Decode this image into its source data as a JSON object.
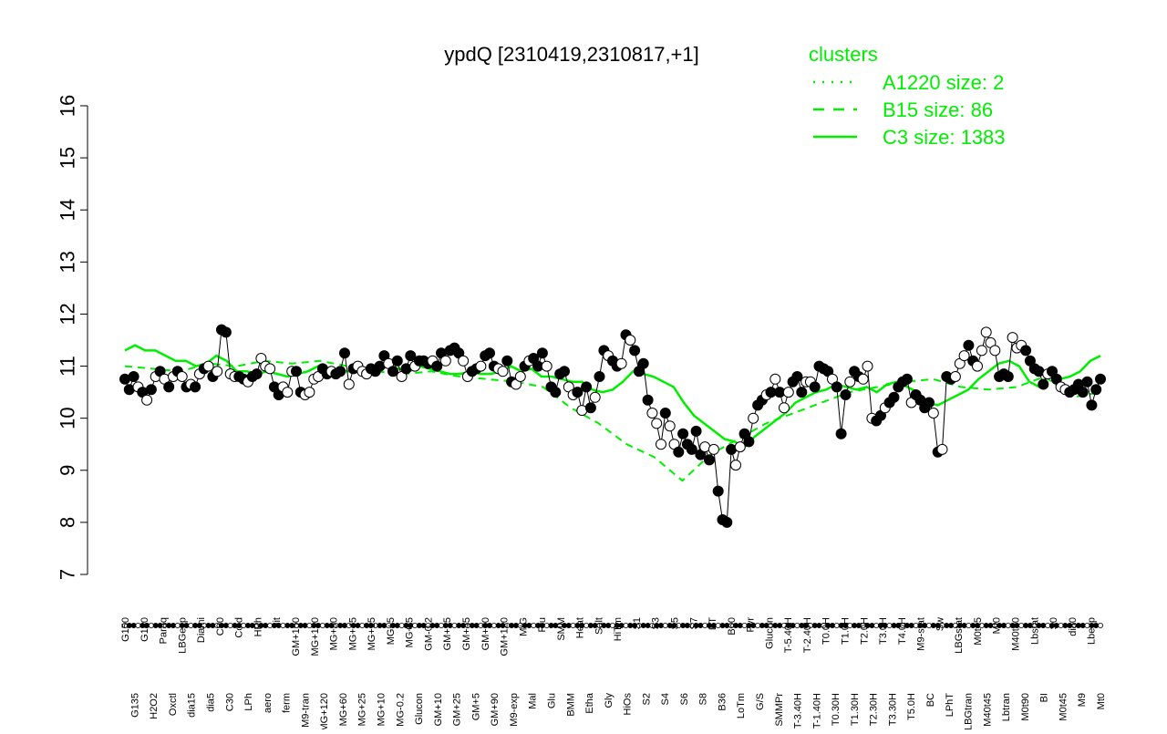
{
  "chart_data": {
    "type": "line",
    "title": "ypdQ [2310419,2310817,+1]",
    "ylim": [
      7,
      16
    ],
    "y_ticks": [
      7,
      8,
      9,
      10,
      11,
      12,
      13,
      14,
      15,
      16
    ],
    "legend": {
      "title": "clusters",
      "placement": "top-right",
      "entries": [
        {
          "label": "A1220 size: 2",
          "style": "dotted"
        },
        {
          "label": "B15 size: 86",
          "style": "dashed"
        },
        {
          "label": "C3 size: 1383",
          "style": "solid"
        }
      ]
    },
    "line_color": "#00ee00",
    "x_tick_labels": [
      "G150",
      "G135",
      "G180",
      "H2O2",
      "Paraq",
      "Oxctl",
      "LBGexp",
      "dia15",
      "Diami",
      "dia5",
      "C90",
      "C30",
      "Cold",
      "LPh",
      "HPh",
      "aero",
      "nit",
      "ferm",
      "GM+150",
      "M9-tran",
      "MG+150",
      "MG+120",
      "MG+90",
      "MG+60",
      "MG+45",
      "MG+25",
      "MG+15",
      "MG+10",
      "MG+5",
      "MG-0.2",
      "MG+t5",
      "Glucon",
      "GM-0.2",
      "GM+10",
      "GM+15",
      "GM+25",
      "GM+45",
      "GM+5",
      "GM+60",
      "GM+90",
      "GM+120",
      "M9-exp",
      "M/G",
      "Mal",
      "Fru",
      "Glu",
      "SMM",
      "BMM",
      "Heat",
      "Etha",
      "Salt",
      "Gly",
      "HiTm",
      "HiOs",
      "S1",
      "S2",
      "S3",
      "S4",
      "S5",
      "S6",
      "S7",
      "S8",
      "BT",
      "B36",
      "B60",
      "LoTm",
      "Pyr",
      "G/S",
      "Glucon",
      "SMMPr",
      "T-5.40H",
      "T-3.40H",
      "T-2.40H",
      "T-1.40H",
      "T0.0H",
      "T0.30H",
      "T1.0H",
      "T1.30H",
      "T2.0H",
      "T2.30H",
      "T3.0H",
      "T3.30H",
      "T4.0H",
      "T5.0H",
      "M9-stat",
      "BC",
      "Sw",
      "LPhT",
      "LBGstat",
      "LBGtran",
      "M0t45",
      "M40t45",
      "Mt0",
      "Lbtran",
      "M40t90",
      "M0t90",
      "Lbstat",
      "BI",
      "S0",
      "M0t45",
      "dia0",
      "M9",
      "Lbexp",
      "Mt0"
    ],
    "series": [
      {
        "values": [
          10.75,
          10.55,
          10.8,
          10.6,
          10.5,
          10.35,
          10.55,
          10.8,
          10.9,
          10.75,
          10.6,
          10.8,
          10.9,
          10.8,
          10.6,
          10.65,
          10.6,
          10.85,
          10.95,
          11.0,
          10.8,
          10.9,
          11.7,
          11.65,
          10.85,
          10.8,
          10.8,
          10.75,
          10.7,
          10.8,
          10.85,
          11.15,
          11.0,
          10.95,
          10.6,
          10.45,
          10.6,
          10.5,
          10.9,
          10.9,
          10.5,
          10.45,
          10.5,
          10.75,
          10.8,
          10.95,
          10.85,
          10.9,
          10.85,
          10.9,
          11.25,
          10.65,
          10.95,
          11.0,
          10.9,
          10.85,
          10.95,
          10.9,
          11.0,
          11.2,
          11.05,
          10.9,
          11.1,
          10.8,
          10.95,
          11.2,
          11.0,
          11.1,
          11.1,
          11.05,
          11.1,
          11.0,
          11.25,
          11.1,
          11.3,
          11.35,
          11.25,
          11.1,
          10.8,
          10.9,
          10.95,
          11.0,
          11.2,
          11.25,
          11.0,
          10.95,
          10.9,
          11.1,
          10.7,
          10.65,
          10.8,
          11.0,
          11.1,
          11.15,
          11.0,
          11.25,
          11.0,
          10.6,
          10.5,
          10.85,
          10.9,
          10.6,
          10.45,
          10.5,
          10.15,
          10.6,
          10.2,
          10.4,
          10.8,
          11.3,
          11.2,
          11.1,
          11.0,
          11.05,
          11.6,
          11.5,
          11.3,
          10.9,
          11.05,
          10.35,
          10.1,
          9.9,
          9.5,
          10.1,
          9.85,
          9.5,
          9.35,
          9.7,
          9.5,
          9.4,
          9.75,
          9.3,
          9.45,
          9.2,
          9.4,
          8.6,
          8.05,
          8.0,
          9.4,
          9.1,
          9.45,
          9.7,
          9.55,
          10.0,
          10.25,
          10.35,
          10.45,
          10.5,
          10.75,
          10.5,
          10.2,
          10.5,
          10.7,
          10.8,
          10.5,
          10.7,
          10.7,
          10.6,
          11.0,
          10.95,
          10.9,
          10.75,
          10.6,
          9.7,
          10.45,
          10.7,
          10.9,
          10.8,
          10.75,
          11.0,
          10.0,
          9.95,
          10.05,
          10.2,
          10.3,
          10.4,
          10.6,
          10.7,
          10.75,
          10.3,
          10.45,
          10.35,
          10.2,
          10.3,
          10.1,
          9.35,
          9.4,
          10.8,
          10.75,
          10.8,
          11.05,
          11.2,
          11.4,
          11.1,
          11.0,
          11.3,
          11.65,
          11.45,
          11.3,
          10.8,
          10.85,
          10.8,
          11.55,
          11.35,
          11.4,
          11.3,
          11.1,
          10.95,
          10.9,
          10.65,
          10.85,
          10.9,
          10.75,
          10.6,
          10.55,
          10.5,
          10.55,
          10.65,
          10.5,
          10.7,
          10.25,
          10.55,
          10.75
        ],
        "filled": [
          1,
          1,
          1,
          0,
          1,
          0,
          1,
          0,
          1,
          0,
          1,
          0,
          1,
          0,
          1,
          0,
          1,
          0,
          1,
          0,
          1,
          0,
          1,
          1,
          0,
          0,
          1,
          1,
          0,
          1,
          1,
          0,
          0,
          0,
          1,
          1,
          0,
          0,
          0,
          1,
          1,
          0,
          0,
          0,
          0,
          1,
          1,
          0,
          1,
          1,
          1,
          0,
          1,
          0,
          0,
          0,
          1,
          1,
          1,
          1,
          0,
          1,
          1,
          0,
          1,
          1,
          0,
          1,
          1,
          1,
          0,
          1,
          1,
          0,
          1,
          1,
          1,
          0,
          0,
          1,
          1,
          0,
          1,
          1,
          1,
          0,
          0,
          1,
          1,
          0,
          0,
          1,
          0,
          1,
          1,
          1,
          0,
          1,
          1,
          1,
          1,
          0,
          0,
          1,
          0,
          1,
          1,
          0,
          1,
          1,
          0,
          1,
          1,
          0,
          1,
          0,
          1,
          1,
          1,
          1,
          0,
          0,
          0,
          1,
          0,
          0,
          1,
          1,
          1,
          1,
          1,
          1,
          0,
          1,
          0,
          1,
          1,
          1,
          1,
          0,
          0,
          1,
          1,
          0,
          1,
          1,
          0,
          1,
          0,
          1,
          0,
          0,
          1,
          1,
          1,
          0,
          0,
          1,
          1,
          1,
          1,
          0,
          1,
          1,
          1,
          0,
          1,
          1,
          0,
          0,
          0,
          1,
          1,
          0,
          1,
          1,
          1,
          1,
          1,
          0,
          1,
          1,
          1,
          1,
          0,
          1,
          0,
          1,
          1,
          0,
          0,
          0,
          1,
          1,
          0,
          0,
          0,
          0,
          0,
          1,
          1,
          1,
          0,
          0,
          0,
          1,
          1,
          1,
          1,
          1,
          0,
          1,
          1,
          0,
          0,
          1,
          1,
          1,
          1,
          1,
          1,
          1,
          1,
          1
        ]
      }
    ],
    "cluster_lines": [
      {
        "name": "C3 size: 1383",
        "values": [
          11.3,
          11.4,
          11.3,
          11.3,
          11.2,
          11.1,
          11.1,
          11.0,
          11.05,
          11.2,
          11.1,
          10.9,
          10.9,
          10.85,
          10.9,
          10.85,
          10.8,
          10.85,
          10.9,
          11.0,
          10.9,
          10.9,
          10.9,
          10.95,
          10.9,
          10.95,
          11.0,
          10.95,
          10.9,
          11.0,
          10.95,
          10.9,
          10.85,
          10.85,
          10.9,
          10.85,
          10.85,
          10.9,
          11.0,
          10.9,
          10.95,
          10.8,
          10.8,
          10.75,
          10.7,
          10.7,
          10.55,
          10.5,
          10.55,
          10.7,
          10.9,
          10.85,
          10.8,
          10.7,
          10.6,
          10.3,
          10.05,
          9.9,
          9.75,
          9.6,
          9.55,
          9.45,
          9.65,
          9.8,
          9.95,
          10.1,
          10.3,
          10.4,
          10.5,
          10.55,
          10.65,
          10.6,
          10.55,
          10.6,
          10.5,
          10.65,
          10.7,
          10.6,
          10.5,
          10.3,
          10.25,
          10.35,
          10.45,
          10.55,
          10.75,
          10.9,
          11.05,
          11.1,
          11.0,
          10.7,
          10.6,
          10.85,
          10.75,
          10.8,
          10.9,
          11.1,
          11.2
        ]
      },
      {
        "name": "B15 size: 86",
        "values": [
          11.0,
          10.95,
          10.9,
          11.05,
          11.0,
          11.1,
          11.05,
          11.1,
          11.0,
          10.9,
          10.85,
          10.9,
          10.8,
          10.75,
          10.7,
          10.6,
          10.2,
          9.9,
          9.5,
          9.25,
          8.8,
          9.3,
          9.6,
          9.9,
          10.1,
          10.3,
          10.5,
          10.6,
          10.7,
          10.75,
          10.6,
          10.55,
          10.6,
          10.8,
          10.4,
          10.5
        ]
      }
    ]
  }
}
